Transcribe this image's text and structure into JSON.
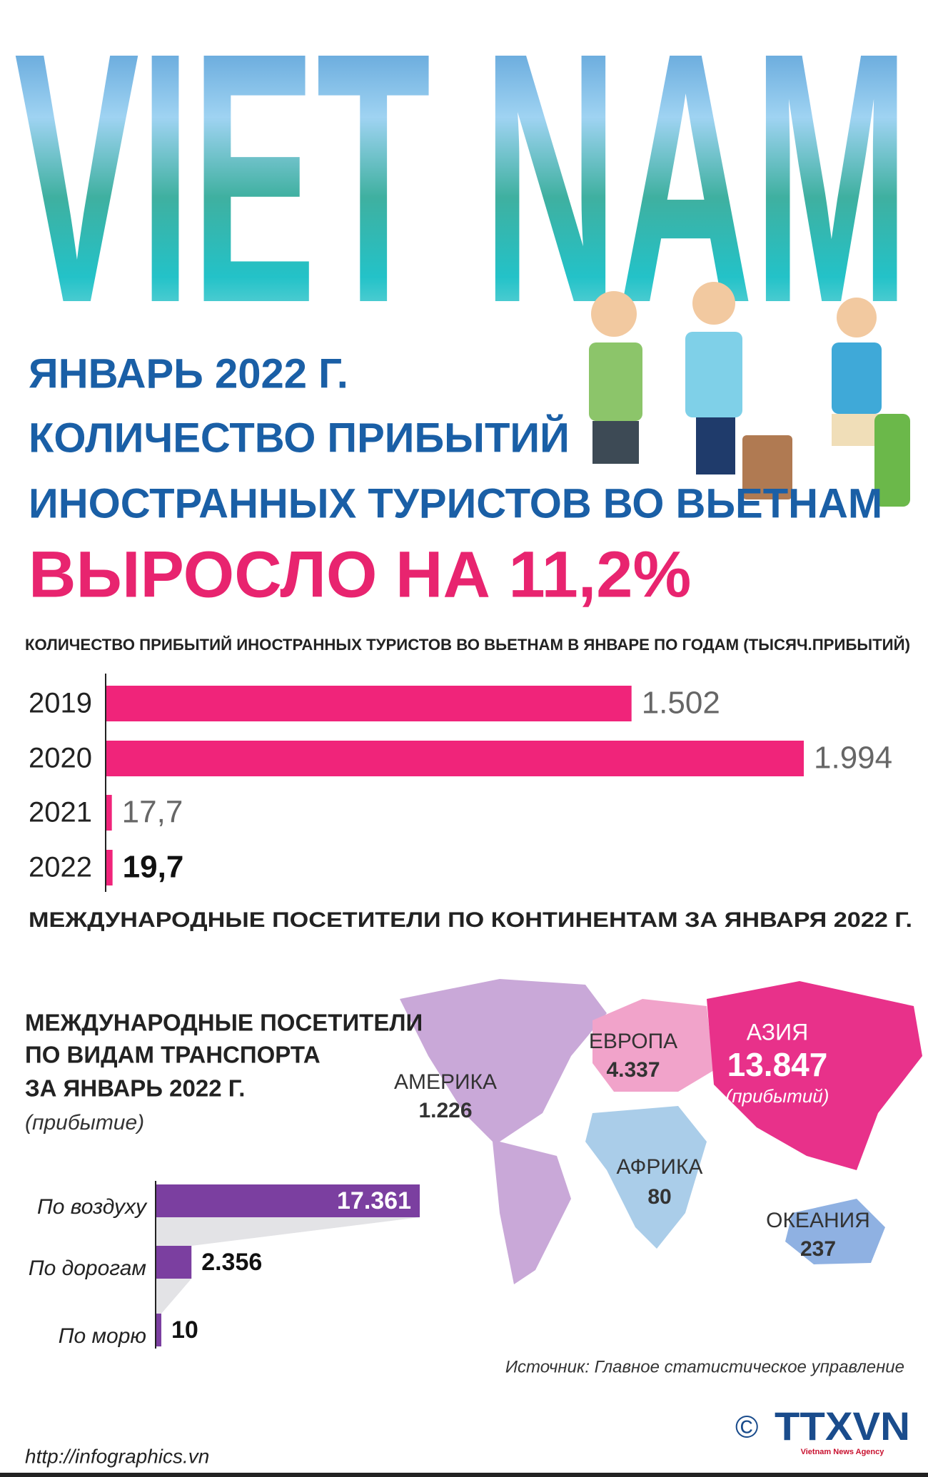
{
  "header": {
    "banner": "VIET NAM",
    "title_lines": [
      "ЯНВАРЬ 2022 Г.",
      "КОЛИЧЕСТВО ПРИБЫТИЙ",
      "ИНОСТРАННЫХ ТУРИСТОВ ВО ВЬЕТНАМ"
    ],
    "headline": "ВЫРОСЛО НА 11,2%"
  },
  "chart_data": [
    {
      "type": "bar",
      "title": "КОЛИЧЕСТВО ПРИБЫТИЙ ИНОСТРАННЫХ ТУРИСТОВ ВО ВЬЕТНАМ В ЯНВАРЕ ПО ГОДАМ (ТЫСЯЧ.ПРИБЫТИЙ)",
      "categories": [
        "2019",
        "2020",
        "2021",
        "2022"
      ],
      "values": [
        1502,
        1994,
        17.7,
        19.7
      ],
      "value_labels": [
        "1.502",
        "1.994",
        "17,7",
        "19,7"
      ],
      "color": "#f0247a"
    },
    {
      "type": "map",
      "title": "МЕЖДУНАРОДНЫЕ ПОСЕТИТЕЛИ ПО КОНТИНЕНТАМ ЗА ЯНВАРЯ 2022 Г.",
      "categories": [
        "АМЕРИКА",
        "ЕВРОПА",
        "АЗИЯ",
        "АФРИКА",
        "ОКЕАНИЯ"
      ],
      "values": [
        1226,
        4337,
        13847,
        80,
        237
      ],
      "value_labels": [
        "1.226",
        "4.337",
        "13.847",
        "80",
        "237"
      ],
      "unit": "(прибытий)",
      "colors": [
        "#c9a8d8",
        "#f1a3ca",
        "#e8318a",
        "#aacde9",
        "#8fb1e2"
      ]
    },
    {
      "type": "bar",
      "title_lines": [
        "МЕЖДУНАРОДНЫЕ ПОСЕТИТЕЛИ",
        "ПО ВИДАМ ТРАНСПОРТА",
        "ЗА ЯНВАРЬ 2022 Г."
      ],
      "subtitle": "(прибытие)",
      "categories": [
        "По воздуху",
        "По дорогам",
        "По морю"
      ],
      "values": [
        17361,
        2356,
        10
      ],
      "value_labels": [
        "17.361",
        "2.356",
        "10"
      ],
      "color": "#7b3fa0"
    }
  ],
  "footer": {
    "source": "Источник: Главное статистическое управление",
    "url": "http://infographics.vn",
    "copyright": "©",
    "agency": "TTXVN",
    "agency_sub": "Vietnam News Agency"
  }
}
